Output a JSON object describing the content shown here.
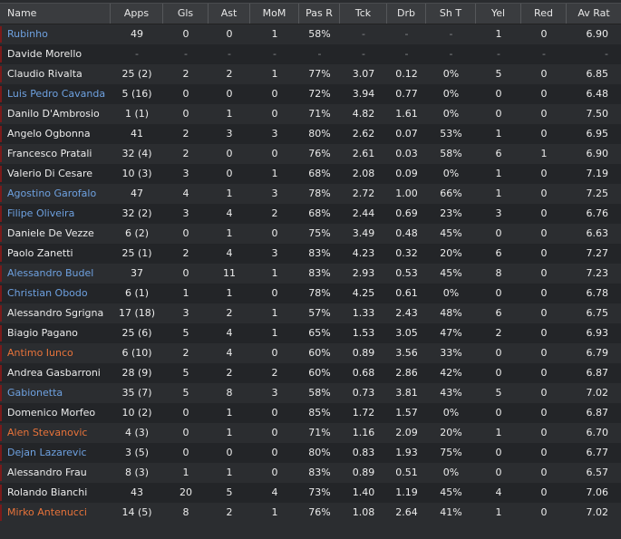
{
  "colors": {
    "header_bg": "#3a3c3f",
    "row_odd": "#2b2d30",
    "row_even": "#232528",
    "name_blue": "#6ea1e0",
    "name_orange": "#e8733a",
    "marker_red": "#7a1a1a"
  },
  "table": {
    "columns": [
      "Name",
      "Apps",
      "Gls",
      "Ast",
      "MoM",
      "Pas R",
      "Tck",
      "Drb",
      "Sh T",
      "Yel",
      "Red",
      "Av Rat"
    ],
    "rows": [
      {
        "name": "Rubinho",
        "style": "blue",
        "apps": "49",
        "gls": "0",
        "ast": "0",
        "mom": "1",
        "pasr": "58%",
        "tck": "-",
        "drb": "-",
        "sht": "-",
        "yel": "1",
        "red": "0",
        "avrat": "6.90"
      },
      {
        "name": "Davide Morello",
        "style": "normal",
        "apps": "-",
        "gls": "-",
        "ast": "-",
        "mom": "-",
        "pasr": "-",
        "tck": "-",
        "drb": "-",
        "sht": "-",
        "yel": "-",
        "red": "-",
        "avrat": "-"
      },
      {
        "name": "Claudio Rivalta",
        "style": "normal",
        "apps": "25 (2)",
        "gls": "2",
        "ast": "2",
        "mom": "1",
        "pasr": "77%",
        "tck": "3.07",
        "drb": "0.12",
        "sht": "0%",
        "yel": "5",
        "red": "0",
        "avrat": "6.85"
      },
      {
        "name": "Luis Pedro Cavanda",
        "style": "blue",
        "apps": "5 (16)",
        "gls": "0",
        "ast": "0",
        "mom": "0",
        "pasr": "72%",
        "tck": "3.94",
        "drb": "0.77",
        "sht": "0%",
        "yel": "0",
        "red": "0",
        "avrat": "6.48"
      },
      {
        "name": "Danilo D'Ambrosio",
        "style": "normal",
        "apps": "1 (1)",
        "gls": "0",
        "ast": "1",
        "mom": "0",
        "pasr": "71%",
        "tck": "4.82",
        "drb": "1.61",
        "sht": "0%",
        "yel": "0",
        "red": "0",
        "avrat": "7.50"
      },
      {
        "name": "Angelo Ogbonna",
        "style": "normal",
        "apps": "41",
        "gls": "2",
        "ast": "3",
        "mom": "3",
        "pasr": "80%",
        "tck": "2.62",
        "drb": "0.07",
        "sht": "53%",
        "yel": "1",
        "red": "0",
        "avrat": "6.95"
      },
      {
        "name": "Francesco Pratali",
        "style": "normal",
        "apps": "32 (4)",
        "gls": "2",
        "ast": "0",
        "mom": "0",
        "pasr": "76%",
        "tck": "2.61",
        "drb": "0.03",
        "sht": "58%",
        "yel": "6",
        "red": "1",
        "avrat": "6.90"
      },
      {
        "name": "Valerio Di Cesare",
        "style": "normal",
        "apps": "10 (3)",
        "gls": "3",
        "ast": "0",
        "mom": "1",
        "pasr": "68%",
        "tck": "2.08",
        "drb": "0.09",
        "sht": "0%",
        "yel": "1",
        "red": "0",
        "avrat": "7.19"
      },
      {
        "name": "Agostino Garofalo",
        "style": "blue",
        "apps": "47",
        "gls": "4",
        "ast": "1",
        "mom": "3",
        "pasr": "78%",
        "tck": "2.72",
        "drb": "1.00",
        "sht": "66%",
        "yel": "1",
        "red": "0",
        "avrat": "7.25"
      },
      {
        "name": "Filipe Oliveira",
        "style": "blue",
        "apps": "32 (2)",
        "gls": "3",
        "ast": "4",
        "mom": "2",
        "pasr": "68%",
        "tck": "2.44",
        "drb": "0.69",
        "sht": "23%",
        "yel": "3",
        "red": "0",
        "avrat": "6.76"
      },
      {
        "name": "Daniele De Vezze",
        "style": "normal",
        "apps": "6 (2)",
        "gls": "0",
        "ast": "1",
        "mom": "0",
        "pasr": "75%",
        "tck": "3.49",
        "drb": "0.48",
        "sht": "45%",
        "yel": "0",
        "red": "0",
        "avrat": "6.63"
      },
      {
        "name": "Paolo Zanetti",
        "style": "normal",
        "apps": "25 (1)",
        "gls": "2",
        "ast": "4",
        "mom": "3",
        "pasr": "83%",
        "tck": "4.23",
        "drb": "0.32",
        "sht": "20%",
        "yel": "6",
        "red": "0",
        "avrat": "7.27"
      },
      {
        "name": "Alessandro Budel",
        "style": "blue",
        "apps": "37",
        "gls": "0",
        "ast": "11",
        "mom": "1",
        "pasr": "83%",
        "tck": "2.93",
        "drb": "0.53",
        "sht": "45%",
        "yel": "8",
        "red": "0",
        "avrat": "7.23"
      },
      {
        "name": "Christian Obodo",
        "style": "blue",
        "apps": "6 (1)",
        "gls": "1",
        "ast": "1",
        "mom": "0",
        "pasr": "78%",
        "tck": "4.25",
        "drb": "0.61",
        "sht": "0%",
        "yel": "0",
        "red": "0",
        "avrat": "6.78"
      },
      {
        "name": "Alessandro Sgrigna",
        "style": "normal",
        "apps": "17 (18)",
        "gls": "3",
        "ast": "2",
        "mom": "1",
        "pasr": "57%",
        "tck": "1.33",
        "drb": "2.43",
        "sht": "48%",
        "yel": "6",
        "red": "0",
        "avrat": "6.75"
      },
      {
        "name": "Biagio Pagano",
        "style": "normal",
        "apps": "25 (6)",
        "gls": "5",
        "ast": "4",
        "mom": "1",
        "pasr": "65%",
        "tck": "1.53",
        "drb": "3.05",
        "sht": "47%",
        "yel": "2",
        "red": "0",
        "avrat": "6.93"
      },
      {
        "name": "Antimo Iunco",
        "style": "orange",
        "apps": "6 (10)",
        "gls": "2",
        "ast": "4",
        "mom": "0",
        "pasr": "60%",
        "tck": "0.89",
        "drb": "3.56",
        "sht": "33%",
        "yel": "0",
        "red": "0",
        "avrat": "6.79"
      },
      {
        "name": "Andrea Gasbarroni",
        "style": "normal",
        "apps": "28 (9)",
        "gls": "5",
        "ast": "2",
        "mom": "2",
        "pasr": "60%",
        "tck": "0.68",
        "drb": "2.86",
        "sht": "42%",
        "yel": "0",
        "red": "0",
        "avrat": "6.87"
      },
      {
        "name": "Gabionetta",
        "style": "blue",
        "apps": "35 (7)",
        "gls": "5",
        "ast": "8",
        "mom": "3",
        "pasr": "58%",
        "tck": "0.73",
        "drb": "3.81",
        "sht": "43%",
        "yel": "5",
        "red": "0",
        "avrat": "7.02"
      },
      {
        "name": "Domenico Morfeo",
        "style": "normal",
        "apps": "10 (2)",
        "gls": "0",
        "ast": "1",
        "mom": "0",
        "pasr": "85%",
        "tck": "1.72",
        "drb": "1.57",
        "sht": "0%",
        "yel": "0",
        "red": "0",
        "avrat": "6.87"
      },
      {
        "name": "Alen Stevanovic",
        "style": "orange",
        "apps": "4 (3)",
        "gls": "0",
        "ast": "1",
        "mom": "0",
        "pasr": "71%",
        "tck": "1.16",
        "drb": "2.09",
        "sht": "20%",
        "yel": "1",
        "red": "0",
        "avrat": "6.70"
      },
      {
        "name": "Dejan Lazarevic",
        "style": "blue",
        "apps": "3 (5)",
        "gls": "0",
        "ast": "0",
        "mom": "0",
        "pasr": "80%",
        "tck": "0.83",
        "drb": "1.93",
        "sht": "75%",
        "yel": "0",
        "red": "0",
        "avrat": "6.77"
      },
      {
        "name": "Alessandro Frau",
        "style": "normal",
        "apps": "8 (3)",
        "gls": "1",
        "ast": "1",
        "mom": "0",
        "pasr": "83%",
        "tck": "0.89",
        "drb": "0.51",
        "sht": "0%",
        "yel": "0",
        "red": "0",
        "avrat": "6.57"
      },
      {
        "name": "Rolando Bianchi",
        "style": "normal",
        "apps": "43",
        "gls": "20",
        "ast": "5",
        "mom": "4",
        "pasr": "73%",
        "tck": "1.40",
        "drb": "1.19",
        "sht": "45%",
        "yel": "4",
        "red": "0",
        "avrat": "7.06"
      },
      {
        "name": "Mirko Antenucci",
        "style": "orange",
        "apps": "14 (5)",
        "gls": "8",
        "ast": "2",
        "mom": "1",
        "pasr": "76%",
        "tck": "1.08",
        "drb": "2.64",
        "sht": "41%",
        "yel": "1",
        "red": "0",
        "avrat": "7.02"
      }
    ]
  }
}
